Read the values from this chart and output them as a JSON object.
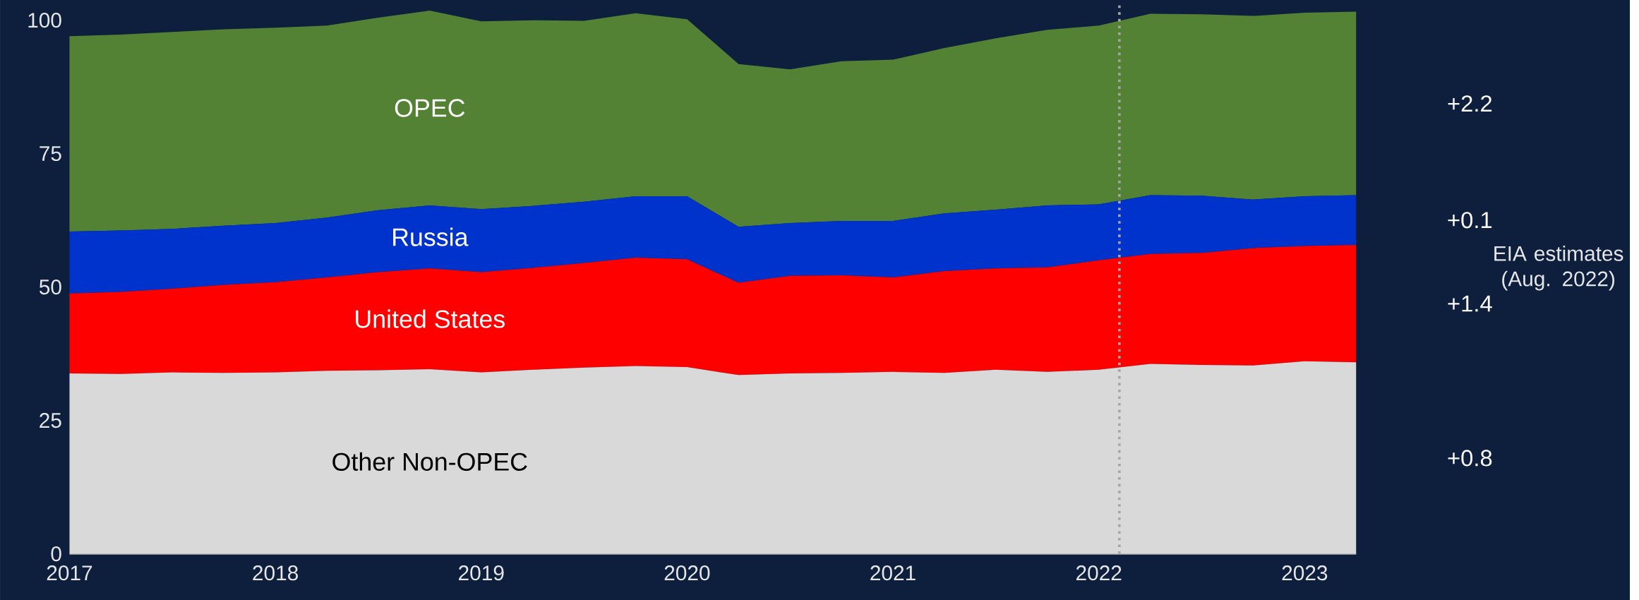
{
  "chart_data": {
    "type": "area",
    "stacked": true,
    "x": [
      2017,
      2017.25,
      2017.5,
      2017.75,
      2018,
      2018.25,
      2018.5,
      2018.75,
      2019,
      2019.25,
      2019.5,
      2019.75,
      2020,
      2020.25,
      2020.5,
      2020.75,
      2021,
      2021.25,
      2021.5,
      2021.75,
      2022,
      2022.25,
      2022.5,
      2022.75,
      2023,
      2023.25
    ],
    "xlim": [
      2017,
      2023.25
    ],
    "xticks": [
      2017,
      2018,
      2019,
      2020,
      2021,
      2022,
      2023
    ],
    "ylim": [
      0,
      103
    ],
    "yticks": [
      0,
      25,
      50,
      75,
      100
    ],
    "series": [
      {
        "name": "Other Non-OPEC",
        "color": "#d9d9d9",
        "values": [
          33.8,
          33.7,
          34.0,
          33.9,
          34.0,
          34.3,
          34.4,
          34.6,
          34.0,
          34.5,
          34.9,
          35.2,
          35.0,
          33.5,
          33.8,
          33.9,
          34.1,
          33.9,
          34.5,
          34.1,
          34.5,
          35.6,
          35.4,
          35.3,
          36.1,
          35.9
        ]
      },
      {
        "name": "United States",
        "color": "#ff0000",
        "values": [
          15.0,
          15.4,
          15.7,
          16.5,
          16.9,
          17.5,
          18.4,
          18.9,
          18.8,
          19.1,
          19.6,
          20.3,
          20.2,
          17.3,
          18.3,
          18.3,
          17.7,
          19.1,
          19.0,
          19.6,
          20.5,
          20.6,
          21.0,
          22.0,
          21.6,
          22.0
        ]
      },
      {
        "name": "Russia",
        "color": "#0033cc",
        "values": [
          11.6,
          11.5,
          11.2,
          11.1,
          11.1,
          11.2,
          11.6,
          11.8,
          11.8,
          11.6,
          11.5,
          11.5,
          11.8,
          10.5,
          9.9,
          10.2,
          10.6,
          10.8,
          11.0,
          11.6,
          10.5,
          11.0,
          10.7,
          9.1,
          9.3,
          9.3
        ]
      },
      {
        "name": "OPEC",
        "color": "#548235",
        "values": [
          36.6,
          36.7,
          36.9,
          36.8,
          36.6,
          36.0,
          36.1,
          36.5,
          35.2,
          34.8,
          33.9,
          34.3,
          33.2,
          30.5,
          28.8,
          29.9,
          30.2,
          31.0,
          32.1,
          32.9,
          33.5,
          34.0,
          34.0,
          34.4,
          34.4,
          34.4
        ]
      }
    ],
    "ref_lines": [
      {
        "axis": "x",
        "value": 2022.1,
        "color": "#a6a6a6",
        "line_style": "dotted"
      }
    ],
    "annotations": [
      "+2.2",
      "+0.1",
      "+1.4",
      "+0.8",
      "EIA estimates (Aug. 2022)"
    ]
  }
}
